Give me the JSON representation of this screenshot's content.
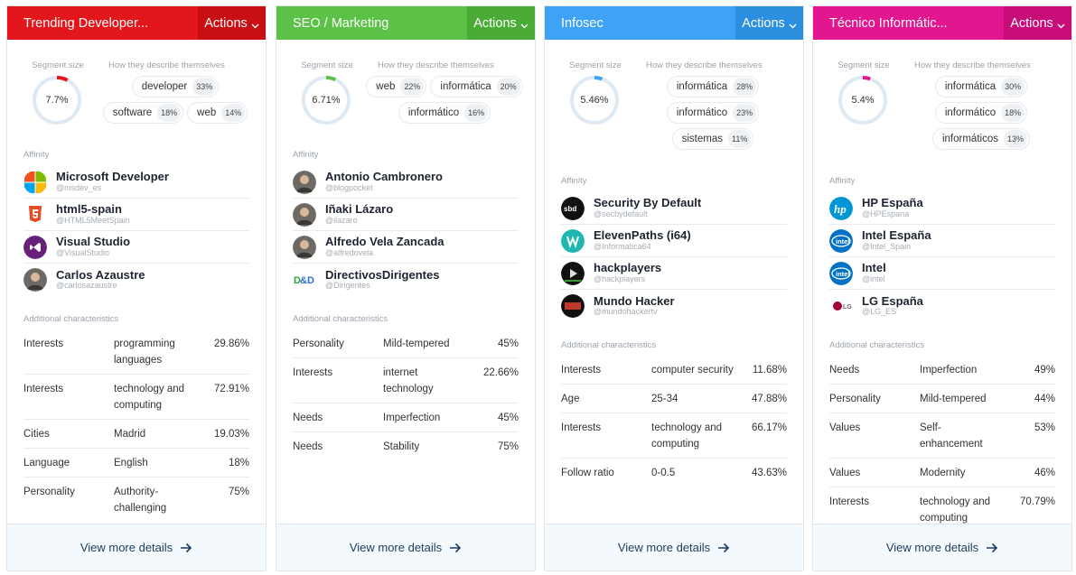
{
  "common": {
    "actions_label": "Actions",
    "segment_size_label": "Segment size",
    "describe_label": "How they describe themselves",
    "affinity_label": "Affinity",
    "additional_label": "Additional characteristics",
    "view_more_label": "View more details"
  },
  "cards": [
    {
      "title": "Trending Developer...",
      "header_color": "#e2161b",
      "actions_color": "#c90e14",
      "accent": "#e2161b",
      "segment_size": "7.7%",
      "segment_fraction": 0.077,
      "pills": [
        {
          "label": "developer",
          "pct": "33%"
        },
        {
          "label": "software",
          "pct": "18%"
        },
        {
          "label": "web",
          "pct": "14%"
        }
      ],
      "affinity": [
        {
          "name": "Microsoft Developer",
          "handle": "@msdev_es",
          "icon": "microsoft-logo-icon"
        },
        {
          "name": "html5-spain",
          "handle": "@HTML5MeetSpain",
          "icon": "html5-logo-icon"
        },
        {
          "name": "Visual Studio",
          "handle": "@VisualStudio",
          "icon": "visual-studio-logo-icon"
        },
        {
          "name": "Carlos Azaustre",
          "handle": "@carlosazaustre",
          "icon": "user-photo-icon"
        }
      ],
      "characteristics": [
        {
          "category": "Interests",
          "value": "programming languages",
          "pct": "29.86%"
        },
        {
          "category": "Interests",
          "value": "technology and computing",
          "pct": "72.91%"
        },
        {
          "category": "Cities",
          "value": "Madrid",
          "pct": "19.03%"
        },
        {
          "category": "Language",
          "value": "English",
          "pct": "18%"
        },
        {
          "category": "Personality",
          "value": "Authority-challenging",
          "pct": "75%"
        }
      ]
    },
    {
      "title": "SEO / Marketing",
      "header_color": "#5cc247",
      "actions_color": "#4aab37",
      "accent": "#5cc247",
      "segment_size": "6.71%",
      "segment_fraction": 0.0671,
      "pills": [
        {
          "label": "web",
          "pct": "22%"
        },
        {
          "label": "informática",
          "pct": "20%"
        },
        {
          "label": "informático",
          "pct": "16%"
        }
      ],
      "affinity": [
        {
          "name": "Antonio Cambronero",
          "handle": "@blogpocket",
          "icon": "user-photo-icon"
        },
        {
          "name": "Iñaki Lázaro",
          "handle": "@ilazaro",
          "icon": "user-photo-icon"
        },
        {
          "name": "Alfredo Vela Zancada",
          "handle": "@alfredovela",
          "icon": "user-photo-icon"
        },
        {
          "name": "DirectivosDirigentes",
          "handle": "@Dirigentes",
          "icon": "dd-logo-icon"
        }
      ],
      "characteristics": [
        {
          "category": "Personality",
          "value": "Mild-tempered",
          "pct": "45%"
        },
        {
          "category": "Interests",
          "value": "internet technology",
          "pct": "22.66%"
        },
        {
          "category": "Needs",
          "value": "Imperfection",
          "pct": "45%"
        },
        {
          "category": "Needs",
          "value": "Stability",
          "pct": "75%"
        }
      ]
    },
    {
      "title": "Infosec",
      "header_color": "#3ea3f5",
      "actions_color": "#2b8fe0",
      "accent": "#3ea3f5",
      "segment_size": "5.46%",
      "segment_fraction": 0.0546,
      "pills": [
        {
          "label": "informática",
          "pct": "28%"
        },
        {
          "label": "informático",
          "pct": "23%"
        },
        {
          "label": "sistemas",
          "pct": "11%"
        }
      ],
      "affinity": [
        {
          "name": "Security By Default",
          "handle": "@secbydefault",
          "icon": "sbd-logo-icon"
        },
        {
          "name": "ElevenPaths (i64)",
          "handle": "@Informatica64",
          "icon": "elevenpaths-logo-icon"
        },
        {
          "name": "hackplayers",
          "handle": "@hackplayers",
          "icon": "hackplayers-logo-icon"
        },
        {
          "name": "Mundo Hacker",
          "handle": "@mundohackertv",
          "icon": "mundo-hacker-logo-icon"
        }
      ],
      "characteristics": [
        {
          "category": "Interests",
          "value": "computer security",
          "pct": "11.68%"
        },
        {
          "category": "Age",
          "value": "25-34",
          "pct": "47.88%"
        },
        {
          "category": "Interests",
          "value": "technology and computing",
          "pct": "66.17%"
        },
        {
          "category": "Follow ratio",
          "value": "0-0.5",
          "pct": "43.63%"
        }
      ]
    },
    {
      "title": "Técnico Informátic...",
      "header_color": "#e2168e",
      "actions_color": "#c80d79",
      "accent": "#e2168e",
      "segment_size": "5.4%",
      "segment_fraction": 0.054,
      "pills": [
        {
          "label": "informática",
          "pct": "30%"
        },
        {
          "label": "informático",
          "pct": "18%"
        },
        {
          "label": "informáticos",
          "pct": "13%"
        }
      ],
      "affinity": [
        {
          "name": "HP España",
          "handle": "@HPEspana",
          "icon": "hp-logo-icon"
        },
        {
          "name": "Intel España",
          "handle": "@Intel_Spain",
          "icon": "intel-logo-icon"
        },
        {
          "name": "Intel",
          "handle": "@intel",
          "icon": "intel-logo-icon"
        },
        {
          "name": "LG España",
          "handle": "@LG_ES",
          "icon": "lg-logo-icon"
        }
      ],
      "characteristics": [
        {
          "category": "Needs",
          "value": "Imperfection",
          "pct": "49%"
        },
        {
          "category": "Personality",
          "value": "Mild-tempered",
          "pct": "44%"
        },
        {
          "category": "Values",
          "value": "Self-enhancement",
          "pct": "53%"
        },
        {
          "category": "Values",
          "value": "Modernity",
          "pct": "46%"
        },
        {
          "category": "Interests",
          "value": "technology and computing",
          "pct": "70.79%"
        }
      ]
    }
  ]
}
